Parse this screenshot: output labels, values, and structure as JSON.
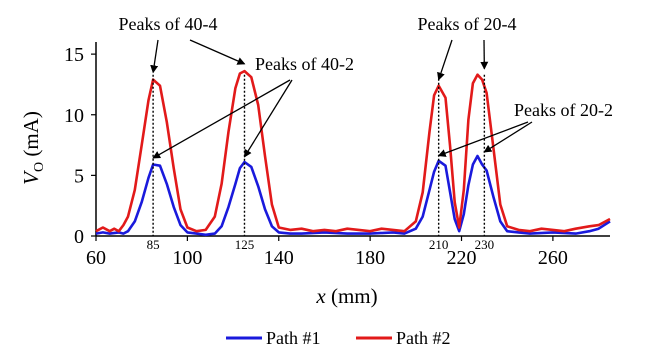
{
  "chart_data": {
    "type": "line",
    "ylabel_main": "V",
    "ylabel_sub": "O",
    "ylabel_unit": " (mA)",
    "xlabel_main": "x",
    "xlabel_unit": " (mm)",
    "xlim": [
      60,
      285
    ],
    "ylim": [
      0,
      16
    ],
    "xticks": [
      60,
      100,
      140,
      180,
      220,
      260
    ],
    "yticks": [
      0,
      5,
      10,
      15
    ],
    "peak_markers": [
      85,
      125,
      210,
      230
    ],
    "annotations": [
      {
        "text": "Peaks of 40-4",
        "targets": [
          [
            85,
            13.0
          ],
          [
            125,
            13.7
          ]
        ]
      },
      {
        "text": "Peaks of 40-2",
        "targets": [
          [
            85,
            6.1
          ],
          [
            125,
            6.2
          ]
        ]
      },
      {
        "text": "Peaks of 20-4",
        "targets": [
          [
            210,
            12.4
          ],
          [
            230,
            13.3
          ]
        ]
      },
      {
        "text": "Peaks of 20-2",
        "targets": [
          [
            210,
            6.3
          ],
          [
            230,
            6.6
          ]
        ]
      }
    ],
    "legend_position": "bottom",
    "series": [
      {
        "name": "Path #1",
        "color": "#1a1adc",
        "x": [
          60,
          63,
          66,
          70,
          72,
          74,
          77,
          80,
          83,
          85,
          88,
          91,
          94,
          97,
          100,
          104,
          108,
          112,
          115,
          118,
          121,
          123,
          125,
          128,
          131,
          134,
          137,
          140,
          145,
          150,
          160,
          170,
          180,
          190,
          195,
          200,
          203,
          206,
          208,
          210,
          213,
          215,
          217,
          219,
          221,
          223,
          225,
          227,
          229,
          231,
          234,
          237,
          240,
          245,
          250,
          260,
          270,
          276,
          280,
          285
        ],
        "y": [
          0.2,
          0.3,
          0.2,
          0.3,
          0.2,
          0.4,
          1.2,
          2.8,
          4.8,
          5.9,
          5.8,
          4.3,
          2.4,
          0.9,
          0.3,
          0.2,
          0.1,
          0.2,
          0.8,
          2.4,
          4.3,
          5.6,
          6.1,
          5.7,
          4.1,
          2.2,
          0.8,
          0.3,
          0.2,
          0.2,
          0.3,
          0.2,
          0.2,
          0.3,
          0.2,
          0.6,
          1.6,
          3.8,
          5.3,
          6.2,
          5.8,
          3.6,
          1.4,
          0.4,
          1.8,
          4.2,
          5.9,
          6.6,
          5.9,
          5.4,
          3.2,
          1.2,
          0.4,
          0.3,
          0.2,
          0.3,
          0.2,
          0.4,
          0.6,
          1.2
        ]
      },
      {
        "name": "Path #2",
        "color": "#e21a1a",
        "x": [
          60,
          63,
          66,
          68,
          70,
          72,
          74,
          77,
          80,
          83,
          85,
          88,
          91,
          94,
          97,
          100,
          104,
          108,
          112,
          115,
          118,
          121,
          123,
          125,
          128,
          131,
          134,
          137,
          140,
          145,
          150,
          155,
          160,
          165,
          170,
          175,
          180,
          185,
          190,
          195,
          200,
          203,
          206,
          208,
          210,
          213,
          215,
          217,
          219,
          221,
          223,
          225,
          227,
          229,
          231,
          234,
          237,
          240,
          245,
          250,
          255,
          260,
          265,
          270,
          276,
          280,
          285
        ],
        "y": [
          0.4,
          0.7,
          0.4,
          0.6,
          0.4,
          0.9,
          1.6,
          3.8,
          7.5,
          11.2,
          12.9,
          12.4,
          9.4,
          5.6,
          2.2,
          0.7,
          0.4,
          0.5,
          1.6,
          4.3,
          8.6,
          12.2,
          13.4,
          13.6,
          13.1,
          10.8,
          6.6,
          2.6,
          0.7,
          0.5,
          0.6,
          0.4,
          0.5,
          0.4,
          0.6,
          0.5,
          0.4,
          0.6,
          0.5,
          0.4,
          1.2,
          3.6,
          8.6,
          11.6,
          12.4,
          11.4,
          7.4,
          2.8,
          0.7,
          3.8,
          9.6,
          12.6,
          13.3,
          12.9,
          11.8,
          7.2,
          2.6,
          0.8,
          0.5,
          0.4,
          0.6,
          0.5,
          0.4,
          0.6,
          0.8,
          0.9,
          1.4
        ]
      }
    ]
  }
}
